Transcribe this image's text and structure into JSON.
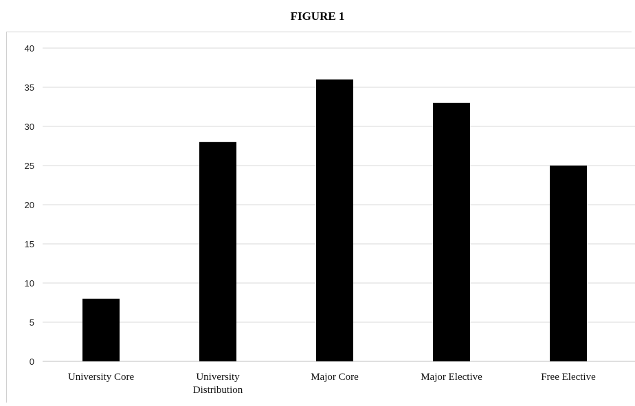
{
  "figure_title": "FIGURE 1",
  "chart_data": {
    "type": "bar",
    "title": "FIGURE 1",
    "categories": [
      [
        "University Core"
      ],
      [
        "University",
        "Distribution"
      ],
      [
        "Major Core"
      ],
      [
        "Major Elective"
      ],
      [
        "Free Elective"
      ]
    ],
    "values": [
      8,
      28,
      36,
      33,
      25
    ],
    "ylim": [
      0,
      40
    ],
    "yticks": [
      0,
      5,
      10,
      15,
      20,
      25,
      30,
      35,
      40
    ],
    "xlabel": "",
    "ylabel": "",
    "grid": true,
    "legend": "none",
    "bar_color": "#000000",
    "grid_color": "#d9d9d9"
  }
}
